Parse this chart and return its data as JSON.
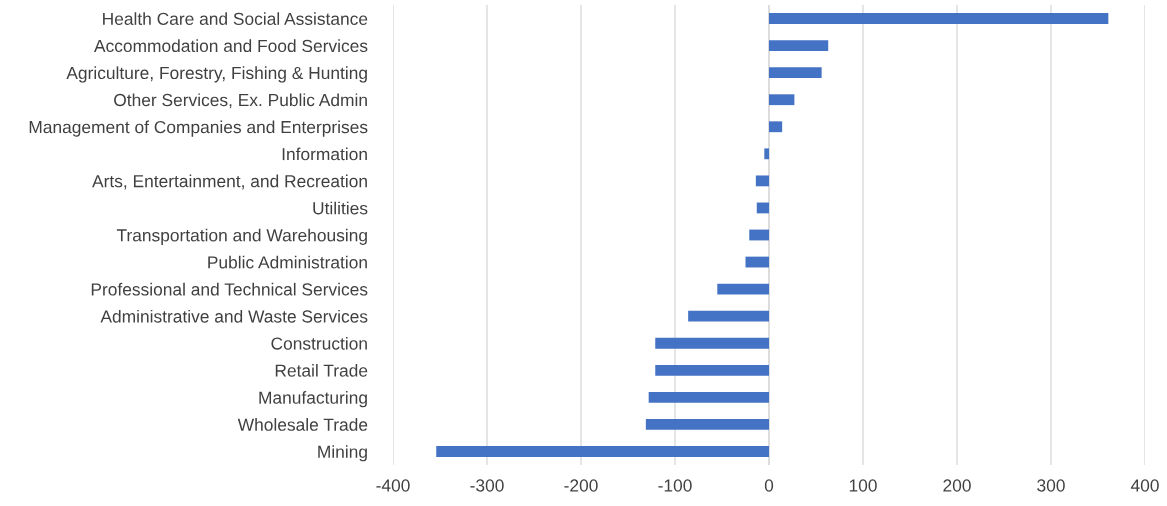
{
  "chart_data": {
    "type": "bar",
    "orientation": "horizontal",
    "categories": [
      "Health Care and Social Assistance",
      "Accommodation and Food Services",
      "Agriculture, Forestry, Fishing & Hunting",
      "Other Services, Ex. Public Admin",
      "Management of Companies and Enterprises",
      "Information",
      "Arts, Entertainment, and Recreation",
      "Utilities",
      "Transportation and Warehousing",
      "Public Administration",
      "Professional and Technical Services",
      "Administrative and Waste Services",
      "Construction",
      "Retail Trade",
      "Manufacturing",
      "Wholesale Trade",
      "Mining"
    ],
    "values": [
      361,
      63,
      56,
      27,
      14,
      -5,
      -14,
      -13,
      -21,
      -25,
      -55,
      -86,
      -121,
      -121,
      -128,
      -131,
      -354
    ],
    "color": "#4472c4",
    "xlim": [
      -400,
      400
    ],
    "xticks": [
      -400,
      -300,
      -200,
      -100,
      0,
      100,
      200,
      300,
      400
    ],
    "grid": "x"
  }
}
